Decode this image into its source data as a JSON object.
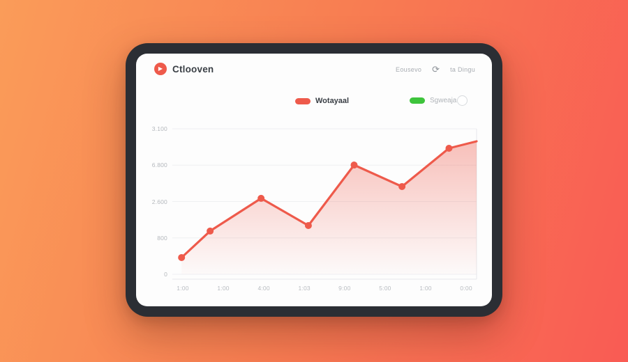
{
  "background": {
    "gradient_from": "#fa9c59",
    "gradient_mid": "#f87e52",
    "gradient_to": "#f95b54"
  },
  "device": {
    "frame_color": "#2b2e34",
    "screen_color": "#fdfdfd"
  },
  "header": {
    "app_name": "Ctlooven",
    "logo_color": "#ee5a4b",
    "logo_glyph": "▶",
    "menu_text_1": "Eousevo",
    "refresh_glyph": "⟳",
    "menu_text_2": "ta Dingu"
  },
  "legend": {
    "series1_label": "Wotayaal",
    "series1_color": "#ee5a4b",
    "series2_label": "Sgweaja",
    "series2_color": "#3ec43c"
  },
  "chart_data": {
    "type": "area",
    "title": "",
    "xlabel": "",
    "ylabel": "",
    "grid": true,
    "legend_position": "top",
    "x_labels": [
      "1:00",
      "1:00",
      "4:00",
      "1:03",
      "9:00",
      "5:00",
      "1:00",
      "0:00"
    ],
    "x_label_pos_pct": [
      3.4,
      16.6,
      29.8,
      43.0,
      56.1,
      69.3,
      82.5,
      95.7
    ],
    "y_tick_labels": [
      "3.100",
      "6.800",
      "2.600",
      "800",
      "0"
    ],
    "ylim": [
      0,
      100
    ],
    "x_pos_pct": [
      3.0,
      12.3,
      28.9,
      44.3,
      59.2,
      74.8,
      90.1,
      99.1
    ],
    "series": [
      {
        "name": "Wotayaal",
        "values_pct": [
          11.5,
          29.7,
          52.2,
          33.5,
          75.1,
          60.3,
          86.6,
          91.4
        ]
      }
    ],
    "line_color": "#ee5a4b",
    "dot_color": "#ee5a4b",
    "fill_color": "#ee5a4b",
    "gridline_color": "#eef0f2",
    "axis_color": "#e6e8ea"
  }
}
